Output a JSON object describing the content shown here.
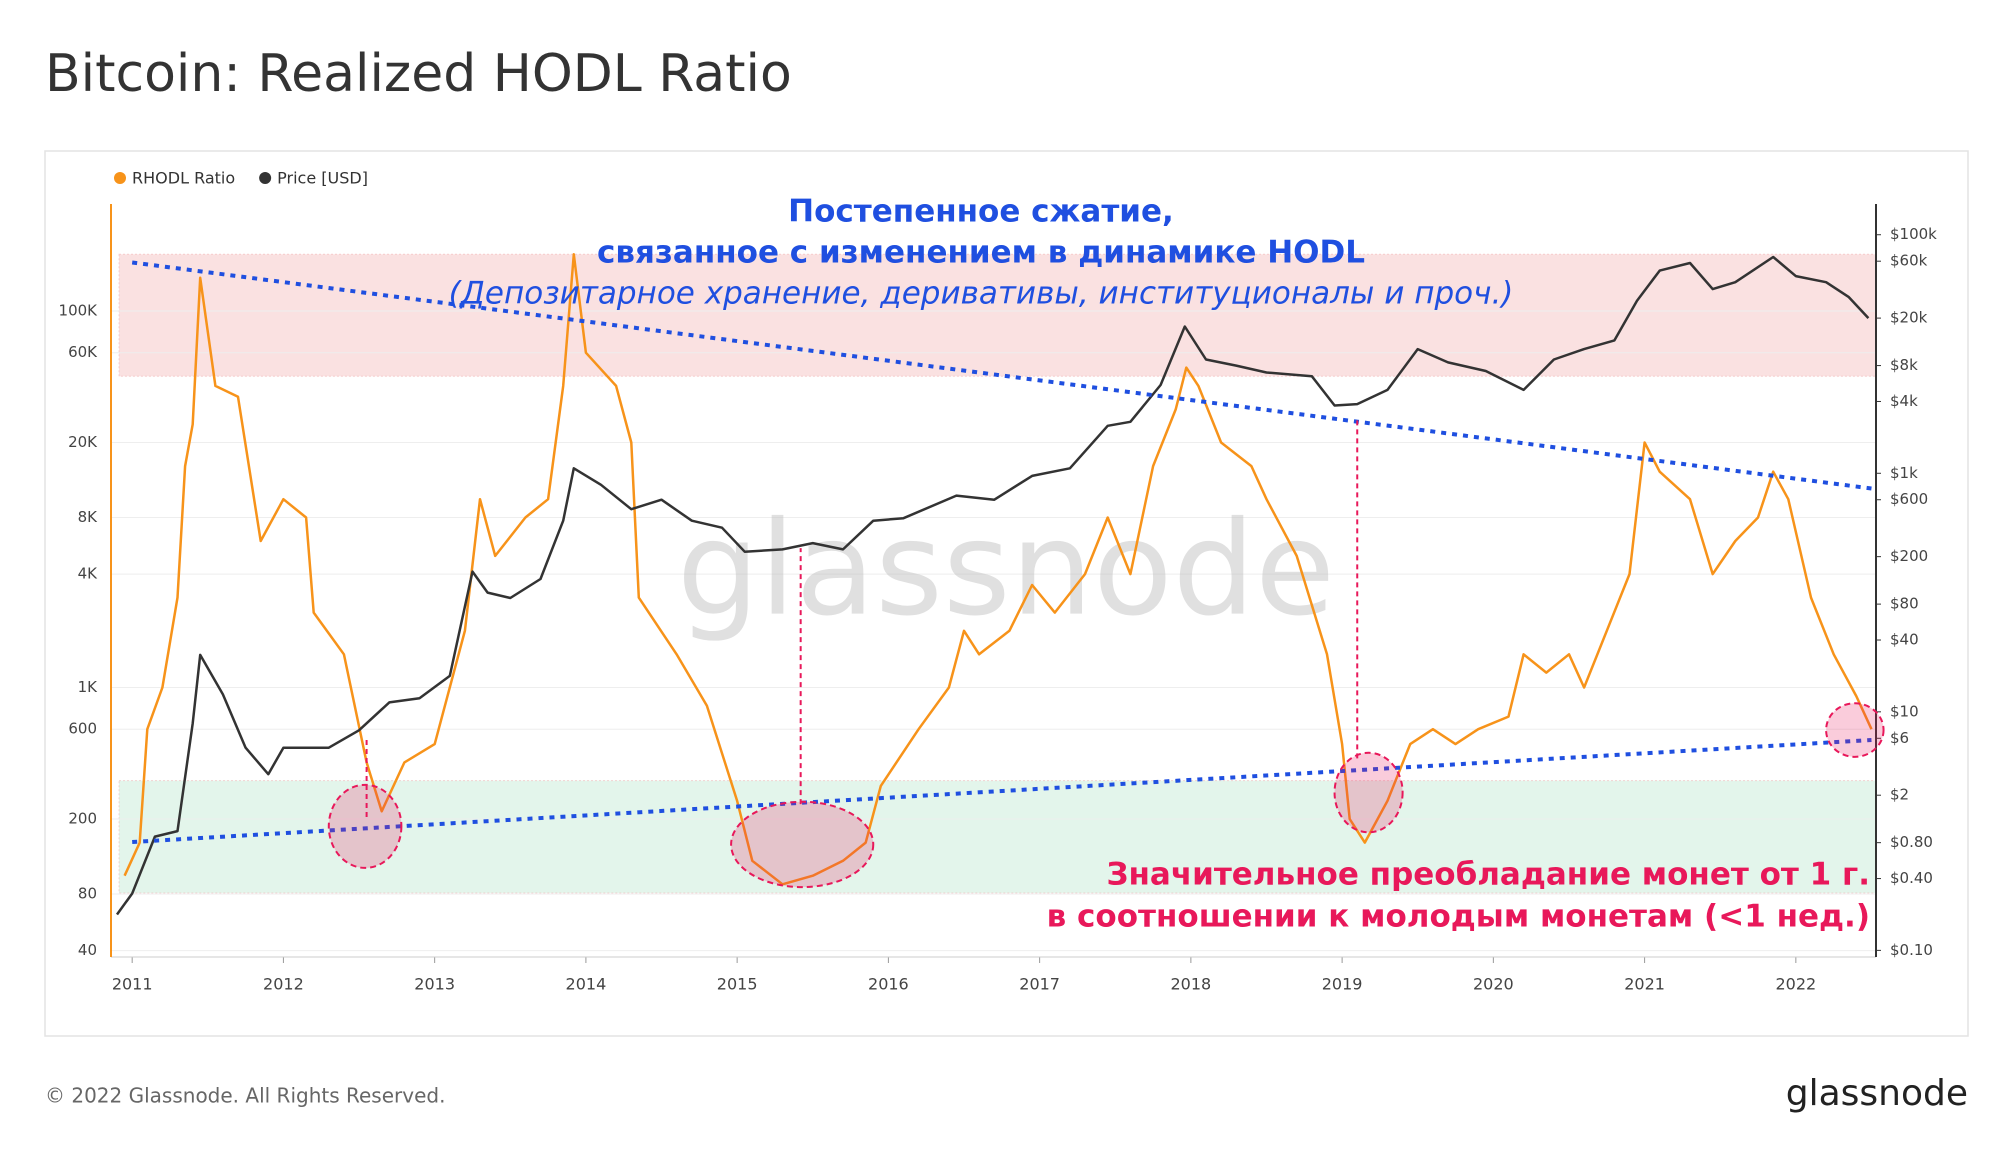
{
  "header": {
    "title": "Bitcoin: Realized HODL Ratio"
  },
  "footer": {
    "copyright": "© 2022 Glassnode. All Rights Reserved.",
    "logo": "glassnode"
  },
  "chart_data": {
    "type": "line",
    "watermark": "glassnode",
    "log_scale": true,
    "grid": true,
    "legend": "top-left",
    "xlim": [
      2010.86,
      2022.53
    ],
    "xticks": [
      2011,
      2012,
      2013,
      2014,
      2015,
      2016,
      2017,
      2018,
      2019,
      2020,
      2021,
      2022
    ],
    "ylim": [
      37,
      370000
    ],
    "yticks": [
      40,
      80,
      200,
      600,
      {
        "value": 1000,
        "label": "1K"
      },
      {
        "value": 4000,
        "label": "4K"
      },
      {
        "value": 8000,
        "label": "8K"
      },
      {
        "value": 20000,
        "label": "20K"
      },
      {
        "value": 60000,
        "label": "60K"
      },
      {
        "value": 100000,
        "label": "100K"
      }
    ],
    "y2lim": [
      0.088,
      181000
    ],
    "y2ticks": [
      {
        "value": 0.1,
        "label": "$0.10"
      },
      {
        "value": 0.4,
        "label": "$0.40"
      },
      {
        "value": 0.8,
        "label": "$0.80"
      },
      {
        "value": 2,
        "label": "$2"
      },
      {
        "value": 6,
        "label": "$6"
      },
      {
        "value": 10,
        "label": "$10"
      },
      {
        "value": 40,
        "label": "$40"
      },
      {
        "value": 80,
        "label": "$80"
      },
      {
        "value": 200,
        "label": "$200"
      },
      {
        "value": 600,
        "label": "$600"
      },
      {
        "value": 1000,
        "label": "$1k"
      },
      {
        "value": 4000,
        "label": "$4k"
      },
      {
        "value": 8000,
        "label": "$8k"
      },
      {
        "value": 20000,
        "label": "$20k"
      },
      {
        "value": 60000,
        "label": "$60k"
      },
      {
        "value": 100000,
        "label": "$100k"
      }
    ],
    "series": [
      {
        "name": "RHODL Ratio",
        "color": "#f7931a",
        "x": [
          2010.95,
          2011.05,
          2011.1,
          2011.2,
          2011.3,
          2011.35,
          2011.4,
          2011.45,
          2011.55,
          2011.7,
          2011.85,
          2012.0,
          2012.15,
          2012.2,
          2012.4,
          2012.55,
          2012.65,
          2012.8,
          2013.0,
          2013.2,
          2013.3,
          2013.4,
          2013.6,
          2013.75,
          2013.85,
          2013.92,
          2014.0,
          2014.2,
          2014.3,
          2014.35,
          2014.6,
          2014.8,
          2015.0,
          2015.1,
          2015.3,
          2015.5,
          2015.7,
          2015.85,
          2015.95,
          2016.2,
          2016.4,
          2016.5,
          2016.6,
          2016.8,
          2016.95,
          2017.1,
          2017.3,
          2017.45,
          2017.6,
          2017.75,
          2017.9,
          2017.97,
          2018.05,
          2018.2,
          2018.4,
          2018.5,
          2018.7,
          2018.9,
          2019.0,
          2019.05,
          2019.15,
          2019.3,
          2019.45,
          2019.6,
          2019.75,
          2019.9,
          2020.1,
          2020.2,
          2020.35,
          2020.5,
          2020.6,
          2020.75,
          2020.9,
          2021.0,
          2021.1,
          2021.3,
          2021.45,
          2021.6,
          2021.75,
          2021.85,
          2021.95,
          2022.1,
          2022.25,
          2022.4,
          2022.5
        ],
        "values": [
          100,
          150,
          600,
          1000,
          3000,
          15000,
          25000,
          150000,
          40000,
          35000,
          6000,
          10000,
          8000,
          2500,
          1500,
          400,
          220,
          400,
          500,
          2000,
          10000,
          5000,
          8000,
          10000,
          40000,
          200000,
          60000,
          40000,
          20000,
          3000,
          1500,
          800,
          250,
          120,
          90,
          100,
          120,
          150,
          300,
          600,
          1000,
          2000,
          1500,
          2000,
          3500,
          2500,
          4000,
          8000,
          4000,
          15000,
          30000,
          50000,
          40000,
          20000,
          15000,
          10000,
          5000,
          1500,
          500,
          200,
          150,
          250,
          500,
          600,
          500,
          600,
          700,
          1500,
          1200,
          1500,
          1000,
          2000,
          4000,
          20000,
          14000,
          10000,
          4000,
          6000,
          8000,
          14000,
          10000,
          3000,
          1500,
          900,
          600
        ]
      },
      {
        "name": "Price [USD]",
        "color": "#333333",
        "axis": "y2",
        "x": [
          2010.9,
          2011.0,
          2011.15,
          2011.3,
          2011.4,
          2011.45,
          2011.6,
          2011.75,
          2011.9,
          2012.0,
          2012.3,
          2012.5,
          2012.7,
          2012.9,
          2013.1,
          2013.25,
          2013.35,
          2013.5,
          2013.7,
          2013.85,
          2013.92,
          2014.1,
          2014.3,
          2014.5,
          2014.7,
          2014.9,
          2015.05,
          2015.3,
          2015.5,
          2015.7,
          2015.9,
          2016.1,
          2016.45,
          2016.7,
          2016.95,
          2017.2,
          2017.45,
          2017.6,
          2017.8,
          2017.96,
          2018.1,
          2018.3,
          2018.5,
          2018.8,
          2018.95,
          2019.1,
          2019.3,
          2019.5,
          2019.7,
          2019.95,
          2020.2,
          2020.4,
          2020.6,
          2020.8,
          2020.95,
          2021.1,
          2021.3,
          2021.45,
          2021.6,
          2021.85,
          2022.0,
          2022.2,
          2022.35,
          2022.48
        ],
        "values": [
          0.2,
          0.3,
          0.9,
          1,
          8,
          30,
          14,
          5,
          3,
          5,
          5,
          7,
          12,
          13,
          20,
          150,
          100,
          90,
          130,
          400,
          1100,
          800,
          500,
          600,
          400,
          350,
          220,
          230,
          260,
          230,
          400,
          420,
          650,
          600,
          950,
          1100,
          2500,
          2700,
          5500,
          17000,
          9000,
          8000,
          7000,
          6500,
          3700,
          3800,
          5000,
          11000,
          8500,
          7200,
          5000,
          9000,
          11000,
          13000,
          28000,
          50000,
          58000,
          35000,
          40000,
          65000,
          45000,
          40000,
          30000,
          20000
        ]
      }
    ],
    "bands": [
      {
        "from": 45000,
        "to": 200000,
        "color": "#f9d9d9"
      },
      {
        "from": 81,
        "to": 320,
        "color": "#dcf2e6"
      }
    ],
    "trend_lines": [
      {
        "x": [
          2011.0,
          2022.5
        ],
        "values": [
          181000,
          11400
        ],
        "color": "#1f4fe0"
      },
      {
        "x": [
          2011.0,
          2022.5
        ],
        "values": [
          151,
          526
        ],
        "color": "#1f4fe0"
      }
    ],
    "event_lines": [
      {
        "x": 2012.55,
        "values": [
          205,
          530
        ]
      },
      {
        "x": 2015.42,
        "values": [
          240,
          5500
        ]
      },
      {
        "x": 2019.1,
        "values": [
          420,
          27000
        ]
      }
    ],
    "highlights": [
      {
        "x": [
          2012.3,
          2012.78
        ],
        "values": [
          110,
          304
        ]
      },
      {
        "x": [
          2014.96,
          2015.9
        ],
        "values": [
          87,
          247
        ]
      },
      {
        "x": [
          2018.95,
          2019.4
        ],
        "values": [
          170,
          450
        ]
      },
      {
        "x": [
          2022.2,
          2022.58
        ],
        "values": [
          428,
          824
        ]
      }
    ],
    "annotations": {
      "top": [
        "Постепенное сжатие,",
        "связанное с изменением в динамике HODL",
        "(Депозитарное хранение, деривативы, институционалы и проч.)"
      ],
      "bottom": [
        "Значительное преобладание монет от 1 г.",
        "в соотношении к молодым монетам (<1 нед.)"
      ]
    }
  }
}
